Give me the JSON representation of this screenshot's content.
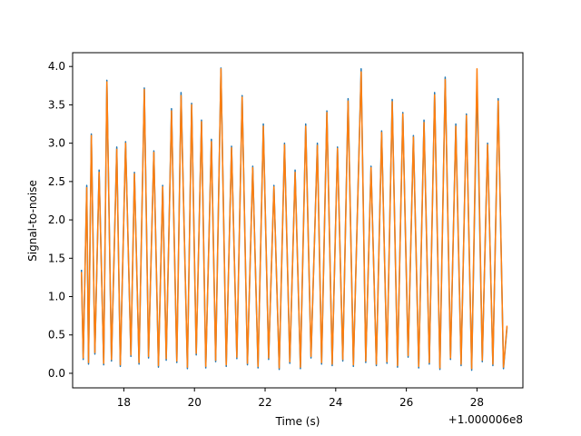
{
  "chart_data": {
    "type": "line",
    "title": "",
    "xlabel": "Time (s)",
    "ylabel": "Signal-to-noise",
    "x_offset_label": "+1.000006e8",
    "xlim": [
      16.55,
      29.3
    ],
    "ylim": [
      -0.19,
      4.18
    ],
    "x_ticks": [
      {
        "value": 18,
        "label": "18"
      },
      {
        "value": 20,
        "label": "20"
      },
      {
        "value": 22,
        "label": "22"
      },
      {
        "value": 24,
        "label": "24"
      },
      {
        "value": 26,
        "label": "26"
      },
      {
        "value": 28,
        "label": "28"
      }
    ],
    "y_ticks": [
      {
        "value": 0.0,
        "label": "0.0"
      },
      {
        "value": 0.5,
        "label": "0.5"
      },
      {
        "value": 1.0,
        "label": "1.0"
      },
      {
        "value": 1.5,
        "label": "1.5"
      },
      {
        "value": 2.0,
        "label": "2.0"
      },
      {
        "value": 2.5,
        "label": "2.5"
      },
      {
        "value": 3.0,
        "label": "3.0"
      },
      {
        "value": 3.5,
        "label": "3.5"
      },
      {
        "value": 4.0,
        "label": "4.0"
      }
    ],
    "grid": false,
    "legend": false,
    "series": [
      {
        "color": "#1f77b4",
        "x": [
          16.8,
          16.85,
          16.95,
          17.0,
          17.08,
          17.18,
          17.3,
          17.43,
          17.52,
          17.65,
          17.8,
          17.9,
          18.05,
          18.2,
          18.3,
          18.43,
          18.58,
          18.7,
          18.85,
          18.98,
          19.1,
          19.2,
          19.35,
          19.5,
          19.62,
          19.8,
          19.92,
          20.05,
          20.2,
          20.32,
          20.48,
          20.6,
          20.75,
          20.9,
          21.05,
          21.2,
          21.35,
          21.5,
          21.65,
          21.8,
          21.95,
          22.1,
          22.25,
          22.4,
          22.55,
          22.7,
          22.85,
          23.0,
          23.15,
          23.3,
          23.48,
          23.6,
          23.75,
          23.9,
          24.05,
          24.2,
          24.35,
          24.5,
          24.72,
          24.85,
          25.0,
          25.15,
          25.3,
          25.45,
          25.6,
          25.75,
          25.9,
          26.05,
          26.2,
          26.35,
          26.5,
          26.65,
          26.8,
          26.95,
          27.1,
          27.25,
          27.4,
          27.55,
          27.7,
          27.85,
          28.0,
          28.15,
          28.3,
          28.45,
          28.6,
          28.75,
          28.85
        ],
        "y": [
          1.35,
          0.18,
          2.45,
          0.12,
          3.12,
          0.25,
          2.65,
          0.11,
          3.82,
          0.16,
          2.95,
          0.09,
          3.02,
          0.22,
          2.62,
          0.12,
          3.72,
          0.2,
          2.9,
          0.08,
          2.45,
          0.17,
          3.45,
          0.14,
          3.66,
          0.06,
          3.52,
          0.24,
          3.3,
          0.07,
          3.05,
          0.15,
          3.98,
          0.09,
          2.96,
          0.19,
          3.62,
          0.11,
          2.7,
          0.07,
          3.25,
          0.18,
          2.45,
          0.05,
          3.0,
          0.13,
          2.65,
          0.06,
          3.25,
          0.2,
          3.0,
          0.12,
          3.42,
          0.1,
          2.95,
          0.16,
          3.58,
          0.09,
          3.97,
          0.14,
          2.7,
          0.1,
          3.16,
          0.13,
          3.57,
          0.08,
          3.4,
          0.21,
          3.1,
          0.07,
          3.3,
          0.12,
          3.66,
          0.05,
          3.86,
          0.18,
          3.25,
          0.1,
          3.38,
          0.04,
          3.82,
          0.15,
          3.0,
          0.1,
          3.58,
          0.06,
          0.6
        ]
      },
      {
        "color": "#ff7f0e",
        "x": [
          16.8,
          16.85,
          16.95,
          17.0,
          17.08,
          17.18,
          17.3,
          17.43,
          17.52,
          17.65,
          17.8,
          17.9,
          18.05,
          18.2,
          18.3,
          18.43,
          18.58,
          18.7,
          18.85,
          18.98,
          19.1,
          19.2,
          19.35,
          19.5,
          19.62,
          19.8,
          19.92,
          20.05,
          20.2,
          20.32,
          20.48,
          20.6,
          20.75,
          20.9,
          21.05,
          21.2,
          21.35,
          21.5,
          21.65,
          21.8,
          21.95,
          22.1,
          22.25,
          22.4,
          22.55,
          22.7,
          22.85,
          23.0,
          23.15,
          23.3,
          23.48,
          23.6,
          23.75,
          23.9,
          24.05,
          24.2,
          24.35,
          24.5,
          24.72,
          24.85,
          25.0,
          25.15,
          25.3,
          25.45,
          25.6,
          25.75,
          25.9,
          26.05,
          26.2,
          26.35,
          26.5,
          26.65,
          26.8,
          26.95,
          27.1,
          27.25,
          27.4,
          27.55,
          27.7,
          27.85,
          28.0,
          28.15,
          28.3,
          28.45,
          28.6,
          28.75,
          28.85
        ],
        "y": [
          1.32,
          0.2,
          2.42,
          0.14,
          3.1,
          0.27,
          2.62,
          0.13,
          3.8,
          0.18,
          2.92,
          0.11,
          3.0,
          0.24,
          2.6,
          0.14,
          3.7,
          0.22,
          2.88,
          0.1,
          2.43,
          0.19,
          3.42,
          0.16,
          3.62,
          0.08,
          3.5,
          0.26,
          3.28,
          0.09,
          3.02,
          0.17,
          3.97,
          0.11,
          2.94,
          0.21,
          3.6,
          0.13,
          2.68,
          0.09,
          3.22,
          0.2,
          2.43,
          0.07,
          2.98,
          0.15,
          2.62,
          0.08,
          3.22,
          0.22,
          2.97,
          0.14,
          3.4,
          0.12,
          2.93,
          0.18,
          3.55,
          0.11,
          3.93,
          0.16,
          2.68,
          0.12,
          3.14,
          0.15,
          3.54,
          0.1,
          3.38,
          0.23,
          3.08,
          0.09,
          3.27,
          0.14,
          3.63,
          0.07,
          3.83,
          0.2,
          3.22,
          0.12,
          3.36,
          0.06,
          3.97,
          0.17,
          2.98,
          0.12,
          3.55,
          0.08,
          0.62
        ]
      }
    ]
  }
}
